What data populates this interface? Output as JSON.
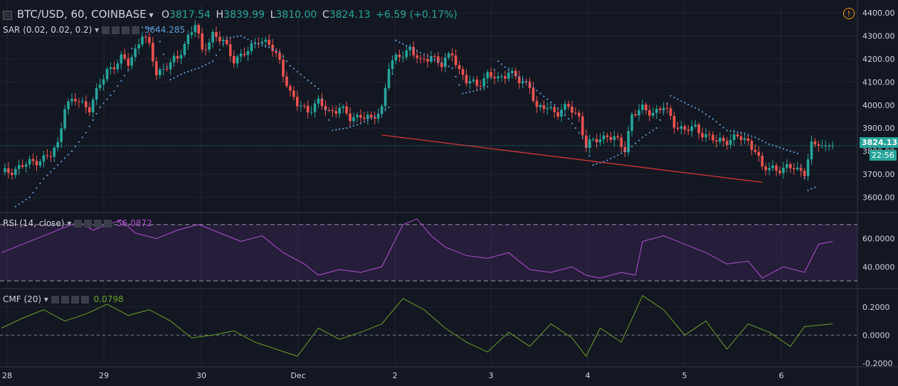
{
  "header": {
    "symbol": "BTC/USD, 60, COINBASE",
    "open_label": "O",
    "open": "3817.54",
    "high_label": "H",
    "high": "3839.99",
    "low_label": "L",
    "low": "3810.00",
    "close_label": "C",
    "close": "3824.13",
    "change": "+6.59 (+0.17%)"
  },
  "indicators": {
    "sar": {
      "name": "SAR (0.02, 0.02, 0.2)",
      "value": "3644.285"
    },
    "rsi": {
      "name": "RSI (14, close)",
      "value": "56.0872"
    },
    "cmf": {
      "name": "CMF (20)",
      "value": "0.0798"
    }
  },
  "last_price": {
    "price": "3824.13",
    "countdown": "22:56"
  },
  "colors": {
    "up": "#26a69a",
    "down": "#ef5350",
    "sar": "#5b9bd5",
    "rsi": "#b24fd1",
    "cmf": "#6ba02a",
    "trendline": "#e53935",
    "bg": "#131722"
  },
  "chart_data": [
    {
      "type": "candlestick",
      "title": "BTC/USD, 60, COINBASE",
      "x_ticks": [
        "28",
        "29",
        "30",
        "Dec",
        "2",
        "3",
        "4",
        "5",
        "6"
      ],
      "y_ticks": [
        "3600.00",
        "3700.00",
        "3800.00",
        "3900.00",
        "4000.00",
        "4100.00",
        "4200.00",
        "4300.00",
        "4400.00"
      ],
      "ylim": [
        3540,
        4440
      ],
      "grid": true,
      "close_path": [
        [
          0,
          3700
        ],
        [
          5,
          3730
        ],
        [
          10,
          3760
        ],
        [
          14,
          3780
        ],
        [
          16,
          3830
        ],
        [
          18,
          4000
        ],
        [
          21,
          4020
        ],
        [
          25,
          3990
        ],
        [
          30,
          4150
        ],
        [
          34,
          4200
        ],
        [
          36,
          4180
        ],
        [
          38,
          4240
        ],
        [
          40,
          4310
        ],
        [
          42,
          4250
        ],
        [
          44,
          4140
        ],
        [
          47,
          4170
        ],
        [
          50,
          4200
        ],
        [
          53,
          4300
        ],
        [
          55,
          4350
        ],
        [
          57,
          4230
        ],
        [
          60,
          4310
        ],
        [
          63,
          4270
        ],
        [
          66,
          4200
        ],
        [
          70,
          4230
        ],
        [
          73,
          4290
        ],
        [
          76,
          4260
        ],
        [
          79,
          4190
        ],
        [
          82,
          4050
        ],
        [
          84,
          4000
        ],
        [
          87,
          3980
        ],
        [
          90,
          4010
        ],
        [
          93,
          3970
        ],
        [
          96,
          3990
        ],
        [
          99,
          3940
        ],
        [
          102,
          3960
        ],
        [
          105,
          3930
        ],
        [
          108,
          3990
        ],
        [
          110,
          4170
        ],
        [
          113,
          4210
        ],
        [
          116,
          4250
        ],
        [
          119,
          4180
        ],
        [
          122,
          4220
        ],
        [
          125,
          4170
        ],
        [
          128,
          4230
        ],
        [
          130,
          4150
        ],
        [
          132,
          4100
        ],
        [
          135,
          4090
        ],
        [
          138,
          4130
        ],
        [
          141,
          4110
        ],
        [
          144,
          4150
        ],
        [
          147,
          4100
        ],
        [
          150,
          4090
        ],
        [
          152,
          3980
        ],
        [
          155,
          3990
        ],
        [
          158,
          3970
        ],
        [
          161,
          3990
        ],
        [
          164,
          3950
        ],
        [
          166,
          3820
        ],
        [
          169,
          3850
        ],
        [
          172,
          3870
        ],
        [
          175,
          3840
        ],
        [
          177,
          3810
        ],
        [
          179,
          3960
        ],
        [
          182,
          3980
        ],
        [
          185,
          3970
        ],
        [
          188,
          3990
        ],
        [
          191,
          3920
        ],
        [
          194,
          3890
        ],
        [
          197,
          3900
        ],
        [
          200,
          3870
        ],
        [
          203,
          3840
        ],
        [
          206,
          3850
        ],
        [
          209,
          3860
        ],
        [
          212,
          3840
        ],
        [
          214,
          3810
        ],
        [
          216,
          3720
        ],
        [
          219,
          3730
        ],
        [
          222,
          3720
        ],
        [
          225,
          3730
        ],
        [
          228,
          3710
        ],
        [
          230,
          3820
        ],
        [
          232,
          3824
        ]
      ],
      "sar_path": [
        [
          4,
          3560
        ],
        [
          8,
          3600
        ],
        [
          12,
          3680
        ],
        [
          16,
          3740
        ],
        [
          20,
          3800
        ],
        [
          24,
          3880
        ],
        [
          28,
          3990
        ],
        [
          32,
          4060
        ],
        [
          36,
          4150
        ],
        [
          38,
          4340
        ],
        [
          44,
          4330
        ],
        [
          48,
          4110
        ],
        [
          52,
          4140
        ],
        [
          56,
          4160
        ],
        [
          60,
          4190
        ],
        [
          64,
          4290
        ],
        [
          68,
          4300
        ],
        [
          72,
          4270
        ],
        [
          76,
          4250
        ],
        [
          79,
          4230
        ],
        [
          82,
          4170
        ],
        [
          86,
          4120
        ],
        [
          90,
          4070
        ],
        [
          94,
          3890
        ],
        [
          98,
          3900
        ],
        [
          102,
          3920
        ],
        [
          106,
          3950
        ],
        [
          110,
          3990
        ],
        [
          112,
          4280
        ],
        [
          116,
          4250
        ],
        [
          120,
          4220
        ],
        [
          124,
          4190
        ],
        [
          128,
          4160
        ],
        [
          131,
          4050
        ],
        [
          134,
          4060
        ],
        [
          138,
          4080
        ],
        [
          141,
          4190
        ],
        [
          145,
          4140
        ],
        [
          149,
          4100
        ],
        [
          153,
          4050
        ],
        [
          157,
          4000
        ],
        [
          161,
          3940
        ],
        [
          165,
          3860
        ],
        [
          168,
          3740
        ],
        [
          172,
          3760
        ],
        [
          176,
          3790
        ],
        [
          179,
          3820
        ],
        [
          182,
          3860
        ],
        [
          186,
          3900
        ],
        [
          190,
          4040
        ],
        [
          194,
          4010
        ],
        [
          198,
          3980
        ],
        [
          202,
          3940
        ],
        [
          206,
          3890
        ],
        [
          210,
          3880
        ],
        [
          214,
          3860
        ],
        [
          218,
          3830
        ],
        [
          222,
          3810
        ],
        [
          226,
          3790
        ],
        [
          229,
          3630
        ],
        [
          232,
          3650
        ]
      ],
      "trendline": [
        [
          108,
          3870
        ],
        [
          216,
          3665
        ]
      ],
      "ylabel": ""
    },
    {
      "type": "line",
      "title": "RSI (14, close)",
      "ylim": [
        25,
        78
      ],
      "y_ticks": [
        "40.0000",
        "60.0000"
      ],
      "bands": [
        30,
        70
      ],
      "values": [
        [
          0,
          50
        ],
        [
          6,
          56
        ],
        [
          12,
          62
        ],
        [
          18,
          68
        ],
        [
          22,
          72
        ],
        [
          26,
          66
        ],
        [
          30,
          70
        ],
        [
          34,
          73
        ],
        [
          38,
          64
        ],
        [
          44,
          60
        ],
        [
          50,
          66
        ],
        [
          56,
          70
        ],
        [
          62,
          64
        ],
        [
          68,
          58
        ],
        [
          74,
          62
        ],
        [
          80,
          50
        ],
        [
          86,
          42
        ],
        [
          90,
          34
        ],
        [
          96,
          38
        ],
        [
          102,
          36
        ],
        [
          108,
          40
        ],
        [
          114,
          70
        ],
        [
          118,
          74
        ],
        [
          122,
          62
        ],
        [
          126,
          54
        ],
        [
          132,
          48
        ],
        [
          138,
          46
        ],
        [
          144,
          50
        ],
        [
          150,
          38
        ],
        [
          156,
          36
        ],
        [
          162,
          40
        ],
        [
          166,
          34
        ],
        [
          170,
          32
        ],
        [
          176,
          36
        ],
        [
          180,
          34
        ],
        [
          182,
          58
        ],
        [
          188,
          62
        ],
        [
          194,
          56
        ],
        [
          200,
          50
        ],
        [
          206,
          42
        ],
        [
          212,
          44
        ],
        [
          216,
          32
        ],
        [
          222,
          40
        ],
        [
          228,
          36
        ],
        [
          232,
          56
        ],
        [
          236,
          58
        ]
      ]
    },
    {
      "type": "line",
      "title": "CMF (20)",
      "ylim": [
        -0.22,
        0.32
      ],
      "y_ticks": [
        "-0.2000",
        "0.0000",
        "0.2000"
      ],
      "values": [
        [
          0,
          0.05
        ],
        [
          6,
          0.12
        ],
        [
          12,
          0.18
        ],
        [
          18,
          0.1
        ],
        [
          24,
          0.15
        ],
        [
          30,
          0.22
        ],
        [
          36,
          0.14
        ],
        [
          42,
          0.18
        ],
        [
          48,
          0.1
        ],
        [
          54,
          -0.02
        ],
        [
          60,
          0.0
        ],
        [
          66,
          0.03
        ],
        [
          72,
          -0.05
        ],
        [
          78,
          -0.1
        ],
        [
          84,
          -0.15
        ],
        [
          90,
          0.05
        ],
        [
          96,
          -0.03
        ],
        [
          102,
          0.02
        ],
        [
          108,
          0.08
        ],
        [
          114,
          0.26
        ],
        [
          120,
          0.18
        ],
        [
          126,
          0.05
        ],
        [
          132,
          -0.05
        ],
        [
          138,
          -0.12
        ],
        [
          144,
          0.02
        ],
        [
          150,
          -0.08
        ],
        [
          156,
          0.08
        ],
        [
          162,
          -0.02
        ],
        [
          166,
          -0.15
        ],
        [
          170,
          0.05
        ],
        [
          176,
          -0.05
        ],
        [
          182,
          0.28
        ],
        [
          188,
          0.18
        ],
        [
          194,
          0.0
        ],
        [
          200,
          0.1
        ],
        [
          206,
          -0.1
        ],
        [
          212,
          0.08
        ],
        [
          218,
          0.02
        ],
        [
          224,
          -0.08
        ],
        [
          228,
          0.06
        ],
        [
          232,
          0.07
        ],
        [
          236,
          0.08
        ]
      ]
    }
  ]
}
